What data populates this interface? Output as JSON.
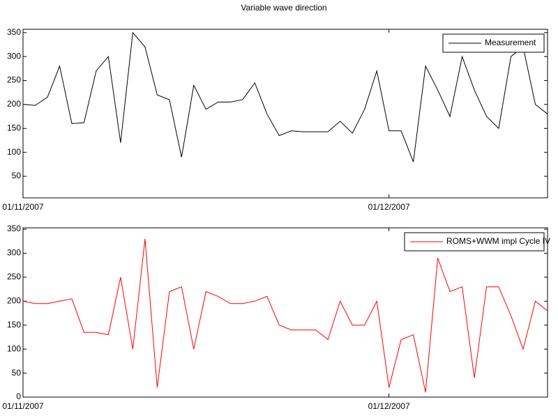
{
  "chart_data": [
    {
      "type": "line",
      "title": "Variable wave direction",
      "x": [
        "2007-11-01",
        "2007-11-02",
        "2007-11-03",
        "2007-11-04",
        "2007-11-05",
        "2007-11-06",
        "2007-11-07",
        "2007-11-08",
        "2007-11-09",
        "2007-11-10",
        "2007-11-11",
        "2007-11-12",
        "2007-11-13",
        "2007-11-14",
        "2007-11-15",
        "2007-11-16",
        "2007-11-17",
        "2007-11-18",
        "2007-11-19",
        "2007-11-20",
        "2007-11-21",
        "2007-11-22",
        "2007-11-23",
        "2007-11-24",
        "2007-11-25",
        "2007-11-26",
        "2007-11-27",
        "2007-11-28",
        "2007-11-29",
        "2007-11-30",
        "2007-12-01",
        "2007-12-02",
        "2007-12-03",
        "2007-12-04",
        "2007-12-05",
        "2007-12-06",
        "2007-12-07",
        "2007-12-08",
        "2007-12-09",
        "2007-12-10",
        "2007-12-11",
        "2007-12-12",
        "2007-12-13",
        "2007-12-14"
      ],
      "series": [
        {
          "name": "Measurement",
          "color": "#000000",
          "values": [
            200,
            198,
            215,
            280,
            160,
            162,
            270,
            300,
            120,
            350,
            320,
            220,
            210,
            90,
            240,
            190,
            205,
            205,
            210,
            245,
            180,
            135,
            145,
            143,
            143,
            143,
            165,
            140,
            190,
            270,
            145,
            145,
            80,
            280,
            230,
            175,
            300,
            230,
            175,
            150,
            300,
            320,
            200,
            180
          ]
        }
      ],
      "xlim": [
        "2007-11-01",
        "2007-12-14"
      ],
      "xticks": [
        {
          "value": "2007-11-01",
          "label": "01/11/2007"
        },
        {
          "value": "2007-12-01",
          "label": "01/12/2007"
        }
      ],
      "ylim": [
        5,
        357
      ],
      "yticks": [
        50,
        100,
        150,
        200,
        250,
        300,
        350
      ],
      "legend": "upper right"
    },
    {
      "type": "line",
      "x": [
        "2007-11-01",
        "2007-11-02",
        "2007-11-03",
        "2007-11-04",
        "2007-11-05",
        "2007-11-06",
        "2007-11-07",
        "2007-11-08",
        "2007-11-09",
        "2007-11-10",
        "2007-11-11",
        "2007-11-12",
        "2007-11-13",
        "2007-11-14",
        "2007-11-15",
        "2007-11-16",
        "2007-11-17",
        "2007-11-18",
        "2007-11-19",
        "2007-11-20",
        "2007-11-21",
        "2007-11-22",
        "2007-11-23",
        "2007-11-24",
        "2007-11-25",
        "2007-11-26",
        "2007-11-27",
        "2007-11-28",
        "2007-11-29",
        "2007-11-30",
        "2007-12-01",
        "2007-12-02",
        "2007-12-03",
        "2007-12-04",
        "2007-12-05",
        "2007-12-06",
        "2007-12-07",
        "2007-12-08",
        "2007-12-09",
        "2007-12-10",
        "2007-12-11",
        "2007-12-12",
        "2007-12-13",
        "2007-12-14"
      ],
      "series": [
        {
          "name": "ROMS+WWM impl Cycle IV",
          "color": "#ff0000",
          "values": [
            200,
            195,
            195,
            200,
            205,
            135,
            135,
            130,
            250,
            100,
            330,
            20,
            220,
            230,
            100,
            220,
            210,
            195,
            195,
            200,
            210,
            150,
            140,
            140,
            140,
            120,
            200,
            150,
            150,
            200,
            20,
            120,
            130,
            10,
            290,
            220,
            230,
            40,
            230,
            230,
            170,
            100,
            200,
            180
          ]
        }
      ],
      "xlim": [
        "2007-11-01",
        "2007-12-14"
      ],
      "xticks": [
        {
          "value": "2007-11-01",
          "label": "01/11/2007"
        },
        {
          "value": "2007-12-01",
          "label": "01/12/2007"
        }
      ],
      "ylim": [
        0,
        353
      ],
      "yticks": [
        0,
        50,
        100,
        150,
        200,
        250,
        300,
        350
      ],
      "legend": "upper right"
    }
  ]
}
